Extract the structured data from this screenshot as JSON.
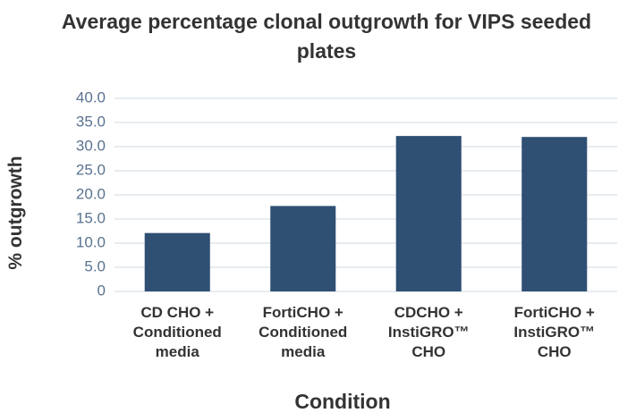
{
  "chart_data": {
    "type": "bar",
    "title": "Average percentage clonal outgrowth for VIPS seeded plates",
    "xlabel": "Condition",
    "ylabel": "% outgrowth",
    "categories": [
      "CD CHO + Conditioned media",
      "FortiCHO + Conditioned media",
      "CDCHO + InstiGRO™ CHO",
      "FortiCHO + InstiGRO™ CHO"
    ],
    "values": [
      12.1,
      17.7,
      32.2,
      32.0
    ],
    "color": "#2f4f73",
    "ylim": [
      0,
      40
    ],
    "yticks": [
      0,
      {
        "value": 5,
        "label": "5.0"
      },
      {
        "value": 10,
        "label": "10.0"
      },
      {
        "value": 15,
        "label": "15.0"
      },
      {
        "value": 20,
        "label": "20.0"
      },
      {
        "value": 25,
        "label": "25.0"
      },
      {
        "value": 30,
        "label": "30.0"
      },
      {
        "value": 35,
        "label": "35.0"
      },
      {
        "value": 40,
        "label": "40.0"
      }
    ],
    "grid": true
  }
}
